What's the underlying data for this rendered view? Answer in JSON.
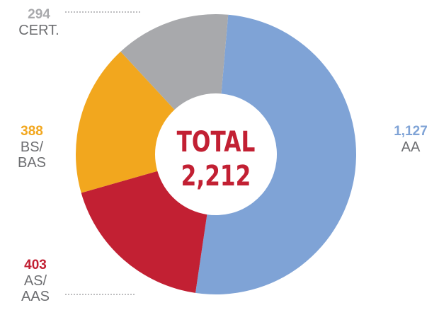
{
  "chart_data": {
    "type": "donut",
    "categories": [
      "AA",
      "AS/\nAAS",
      "BS/\nBAS",
      "CERT."
    ],
    "values": [
      1127,
      403,
      388,
      294
    ],
    "value_labels": [
      "1,127",
      "403",
      "388",
      "294"
    ],
    "colors": [
      "#7fa3d6",
      "#c22033",
      "#f2a71e",
      "#a8a9ac"
    ],
    "center_title": "TOTAL",
    "center_label": "2,212"
  }
}
